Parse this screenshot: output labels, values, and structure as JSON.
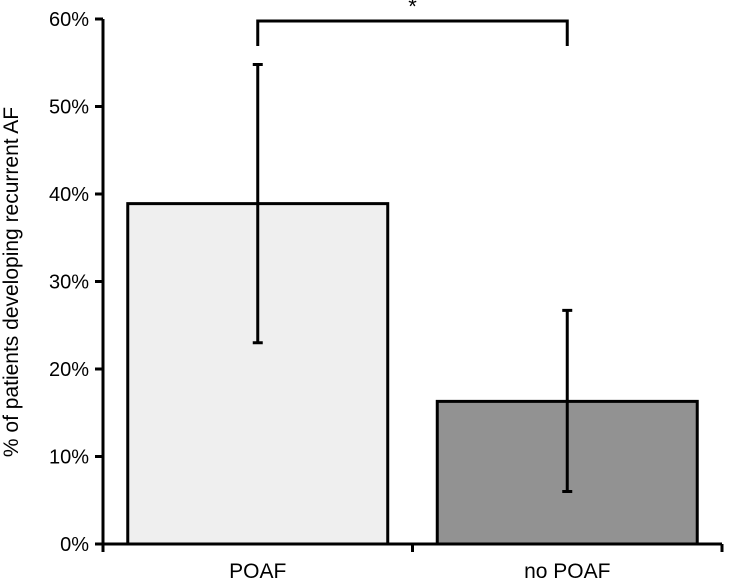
{
  "chart_data": {
    "type": "bar",
    "categories": [
      "POAF",
      "no POAF"
    ],
    "values": [
      38.9,
      16.3
    ],
    "error_lower": [
      23.0,
      6.0
    ],
    "error_upper": [
      54.8,
      26.7
    ],
    "bar_colors": [
      "#efefef",
      "#929292"
    ],
    "ylabel": "% of patients developing recurrent AF",
    "ylim": [
      0,
      60
    ],
    "yticks": [
      0,
      10,
      20,
      30,
      40,
      50,
      60
    ],
    "ytick_labels": [
      "0%",
      "10%",
      "20%",
      "30%",
      "40%",
      "50%",
      "60%"
    ],
    "significance": {
      "between": [
        0,
        1
      ],
      "label": "*"
    },
    "grid": false,
    "legend": "none"
  }
}
